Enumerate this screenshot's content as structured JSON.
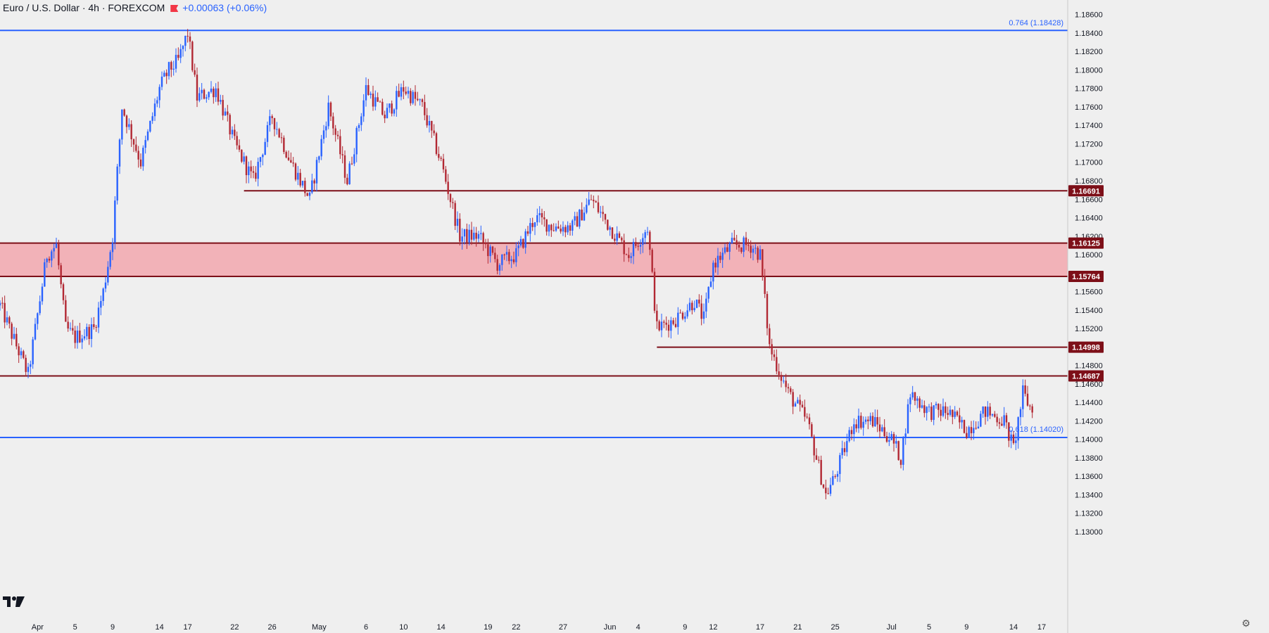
{
  "header": {
    "symbol": "Euro / U.S. Dollar · 4h · FOREXCOM",
    "change": "+0.00063 (+0.06%)"
  },
  "icons": {
    "logo": "tradingview-logo-icon",
    "settings": "gear-icon"
  },
  "colors": {
    "background": "#efefef",
    "up": "#2962ff",
    "down": "#b22833",
    "level": "#7d0f18",
    "fib": "#2962ff",
    "zone": "#f2a3aa"
  },
  "chart_data": {
    "type": "candlestick",
    "title": "Euro / U.S. Dollar · 4h · FOREXCOM",
    "ylim": [
      1.13,
      1.1862
    ],
    "y_ticks": [
      "1.18600",
      "1.18400",
      "1.18200",
      "1.18000",
      "1.17800",
      "1.17600",
      "1.17400",
      "1.17200",
      "1.17000",
      "1.16800",
      "1.16600",
      "1.16400",
      "1.16200",
      "1.16000",
      "1.15800",
      "1.15600",
      "1.15400",
      "1.15200",
      "1.15000",
      "1.14800",
      "1.14600",
      "1.14400",
      "1.14200",
      "1.14000",
      "1.13800",
      "1.13600",
      "1.13400",
      "1.13200",
      "1.13000"
    ],
    "x_ticks": [
      "Apr",
      "5",
      "9",
      "14",
      "17",
      "22",
      "26",
      "May",
      "6",
      "10",
      "14",
      "19",
      "22",
      "27",
      "Jun",
      "4",
      "9",
      "12",
      "17",
      "21",
      "25",
      "Jul",
      "5",
      "9",
      "14",
      "17"
    ],
    "fib_levels": [
      {
        "label": "0.764 (1.18428)",
        "value": 1.18428
      },
      {
        "label": "0.618 (1.14020)",
        "value": 1.1402
      }
    ],
    "levels": [
      {
        "label": "1.16691",
        "value": 1.16691,
        "start_date": "Apr 23"
      },
      {
        "label": "1.16125",
        "value": 1.16125,
        "start_date": "Mar 28"
      },
      {
        "label": "1.15764",
        "value": 1.15764,
        "start_date": "Mar 28"
      },
      {
        "label": "1.14998",
        "value": 1.14998,
        "start_date": "Jun 6"
      },
      {
        "label": "1.14687",
        "value": 1.14687,
        "start_date": "Mar 28"
      }
    ],
    "zone": {
      "low": 1.15764,
      "high": 1.16125
    },
    "price_path": [
      [
        "Mar 28",
        1.1545
      ],
      [
        "Mar 31",
        1.147
      ],
      [
        "Apr 2",
        1.16
      ],
      [
        "Apr 3",
        1.161
      ],
      [
        "Apr 4",
        1.152
      ],
      [
        "Apr 5",
        1.151
      ],
      [
        "Apr 7",
        1.152
      ],
      [
        "Apr 8",
        1.156
      ],
      [
        "Apr 9",
        1.162
      ],
      [
        "Apr 10",
        1.176
      ],
      [
        "Apr 12",
        1.17
      ],
      [
        "Apr 14",
        1.178
      ],
      [
        "Apr 15",
        1.18
      ],
      [
        "Apr 16",
        1.181
      ],
      [
        "Apr 17",
        1.184
      ],
      [
        "Apr 18",
        1.177
      ],
      [
        "Apr 20",
        1.178
      ],
      [
        "Apr 22",
        1.172
      ],
      [
        "Apr 24",
        1.168
      ],
      [
        "Apr 26",
        1.175
      ],
      [
        "Apr 28",
        1.17
      ],
      [
        "Apr 30",
        1.166
      ],
      [
        "May 2",
        1.176
      ],
      [
        "May 4",
        1.168
      ],
      [
        "May 6",
        1.178
      ],
      [
        "May 8",
        1.175
      ],
      [
        "May 10",
        1.178
      ],
      [
        "May 12",
        1.176
      ],
      [
        "May 14",
        1.17
      ],
      [
        "May 16",
        1.162
      ],
      [
        "May 18",
        1.162
      ],
      [
        "May 20",
        1.159
      ],
      [
        "May 22",
        1.16
      ],
      [
        "May 24",
        1.164
      ],
      [
        "May 26",
        1.163
      ],
      [
        "May 28",
        1.163
      ],
      [
        "May 30",
        1.166
      ],
      [
        "Jun 1",
        1.163
      ],
      [
        "Jun 3",
        1.16
      ],
      [
        "Jun 5",
        1.163
      ],
      [
        "Jun 6",
        1.152
      ],
      [
        "Jun 8",
        1.153
      ],
      [
        "Jun 10",
        1.155
      ],
      [
        "Jun 11",
        1.153
      ],
      [
        "Jun 12",
        1.159
      ],
      [
        "Jun 14",
        1.161
      ],
      [
        "Jun 16",
        1.161
      ],
      [
        "Jun 17",
        1.16
      ],
      [
        "Jun 18",
        1.15
      ],
      [
        "Jun 20",
        1.145
      ],
      [
        "Jun 22",
        1.142
      ],
      [
        "Jun 23",
        1.138
      ],
      [
        "Jun 24",
        1.134
      ],
      [
        "Jun 25",
        1.136
      ],
      [
        "Jun 27",
        1.142
      ],
      [
        "Jun 29",
        1.142
      ],
      [
        "Jul 1",
        1.14
      ],
      [
        "Jul 2",
        1.138
      ],
      [
        "Jul 3",
        1.145
      ],
      [
        "Jul 5",
        1.143
      ],
      [
        "Jul 7",
        1.143
      ],
      [
        "Jul 9",
        1.141
      ],
      [
        "Jul 11",
        1.143
      ],
      [
        "Jul 13",
        1.142
      ],
      [
        "Jul 14",
        1.139
      ],
      [
        "Jul 15",
        1.145
      ],
      [
        "Jul 16",
        1.143
      ]
    ]
  }
}
